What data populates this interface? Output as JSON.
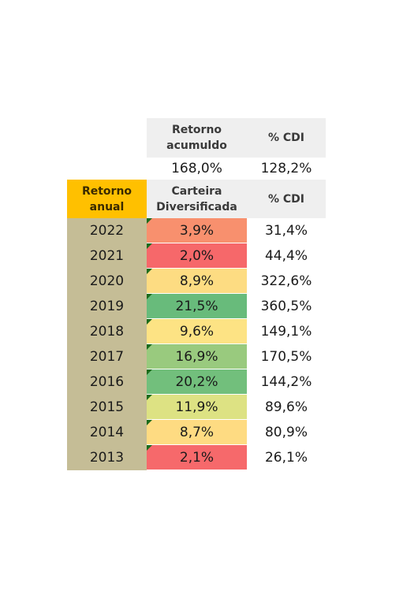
{
  "header": {
    "retorno_acumulado": "Retorno acumuldo",
    "cdi_label": "% CDI"
  },
  "summary": {
    "retorno": "168,0%",
    "cdi": "128,2%"
  },
  "subheader": {
    "retorno_anual": "Retorno anual",
    "carteira": "Carteira Diversificada",
    "cdi_label": "% CDI"
  },
  "rows": [
    {
      "year": "2022",
      "ret": "3,9%",
      "cdi": "31,4%",
      "color": "#f8906e"
    },
    {
      "year": "2021",
      "ret": "2,0%",
      "cdi": "44,4%",
      "color": "#f6686a"
    },
    {
      "year": "2020",
      "ret": "8,9%",
      "cdi": "322,6%",
      "color": "#fddc82"
    },
    {
      "year": "2019",
      "ret": "21,5%",
      "cdi": "360,5%",
      "color": "#68bb7b"
    },
    {
      "year": "2018",
      "ret": "9,6%",
      "cdi": "149,1%",
      "color": "#fde384"
    },
    {
      "year": "2017",
      "ret": "16,9%",
      "cdi": "170,5%",
      "color": "#99ca7e"
    },
    {
      "year": "2016",
      "ret": "20,2%",
      "cdi": "144,2%",
      "color": "#72bf7c"
    },
    {
      "year": "2015",
      "ret": "11,9%",
      "cdi": "89,6%",
      "color": "#dde283"
    },
    {
      "year": "2014",
      "ret": "8,7%",
      "cdi": "80,9%",
      "color": "#fedb82"
    },
    {
      "year": "2013",
      "ret": "2,1%",
      "cdi": "26,1%",
      "color": "#f6696b"
    }
  ]
}
